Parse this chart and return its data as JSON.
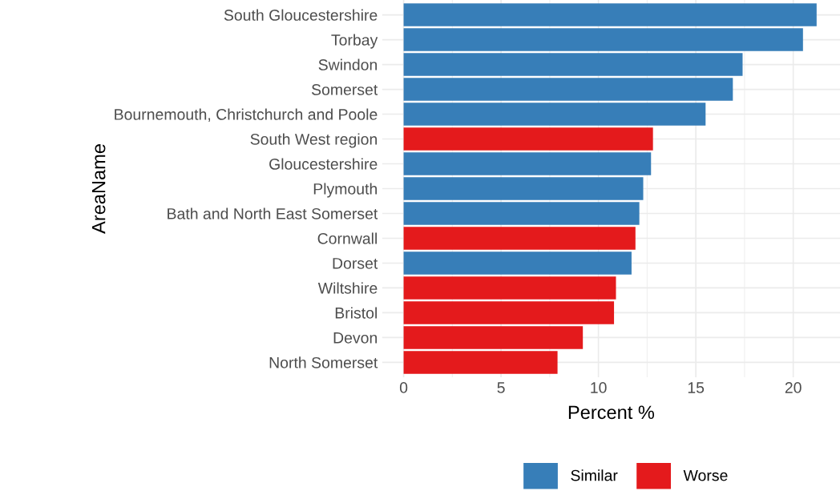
{
  "chart_data": {
    "type": "bar",
    "orientation": "horizontal",
    "xlabel": "Percent %",
    "ylabel": "AreaName",
    "categories": [
      "South Gloucestershire",
      "Torbay",
      "Swindon",
      "Somerset",
      "Bournemouth, Christchurch and Poole",
      "South West region",
      "Gloucestershire",
      "Plymouth",
      "Bath and North East Somerset",
      "Cornwall",
      "Dorset",
      "Wiltshire",
      "Bristol",
      "Devon",
      "North Somerset"
    ],
    "series": [
      {
        "name": "Similar",
        "color": "#377eb8",
        "values": [
          21.2,
          20.5,
          17.4,
          16.9,
          15.5,
          null,
          12.7,
          12.3,
          12.1,
          null,
          11.7,
          null,
          null,
          null,
          null
        ]
      },
      {
        "name": "Worse",
        "color": "#e41a1c",
        "values": [
          null,
          null,
          null,
          null,
          null,
          12.8,
          null,
          null,
          null,
          11.9,
          null,
          10.9,
          10.8,
          9.2,
          7.9
        ]
      }
    ],
    "xlim": [
      -1.1,
      22.4
    ],
    "xticks": [
      0,
      5,
      10,
      15,
      20
    ],
    "grid": true,
    "legend": "bottom"
  }
}
